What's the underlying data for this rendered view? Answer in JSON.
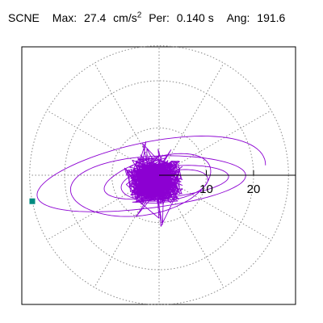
{
  "header": {
    "station": "SCNE",
    "max_label": "Max:",
    "max_value": "27.4",
    "max_unit_base": "cm/s",
    "max_unit_exp": "2",
    "per_label": "Per:",
    "per_value": "0.140 s",
    "ang_label": "Ang:",
    "ang_value": "191.6"
  },
  "chart_data": {
    "type": "polar-trace",
    "max_radius": 27.4,
    "angle_deg": 191.6,
    "period_s": 0.14,
    "rings": [
      10,
      20
    ],
    "radial_ticks": [
      10,
      20
    ],
    "tick_labels": [
      "10",
      "20"
    ],
    "angular_grid_step_deg": 30,
    "trace_color": "#8c00d2",
    "marker_color": "#008b80",
    "grid": true
  }
}
